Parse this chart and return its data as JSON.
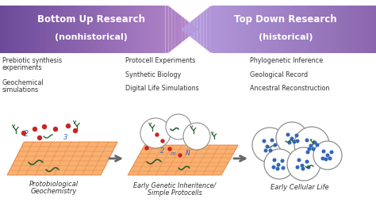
{
  "bg_color": "#ffffff",
  "arrow_left_dark": "#6b4a9a",
  "arrow_left_light": "#b8a8d8",
  "arrow_right_dark": "#8a72b8",
  "arrow_right_light": "#c8bce8",
  "left_arrow_text_line1": "Bottom Up Research",
  "left_arrow_text_line2": "(nonhistorical)",
  "right_arrow_text_line1": "Top Down Research",
  "right_arrow_text_line2": "(historical)",
  "col1_lines": [
    "Prebiotic synthesis",
    "experiments",
    "",
    "Geochemical",
    "simulations"
  ],
  "col2_lines": [
    "Protocell Experiments",
    "",
    "Synthetic Biology",
    "",
    "Digital Life Simulations"
  ],
  "col3_lines": [
    "Phylogenetic Inference",
    "",
    "Geological Record",
    "",
    "Ancestral Reconstruction"
  ],
  "label1_line1": "Protobiological",
  "label1_line2": "Geochemistry",
  "label2_line1": "Early Genetic Inheritence/",
  "label2_line2": "Simple Protocells",
  "label3": "Early Cellular Life",
  "text_color": "#333333",
  "orange_light": "#f9b070",
  "orange_dark": "#e07030",
  "orange_mid": "#f4956a",
  "grid_color": "#d06828",
  "red_dot": "#cc2222",
  "blue_shape": "#3366bb",
  "green_shape": "#2a6030",
  "cell_edge": "#888888",
  "arrow_gray": "#666666"
}
